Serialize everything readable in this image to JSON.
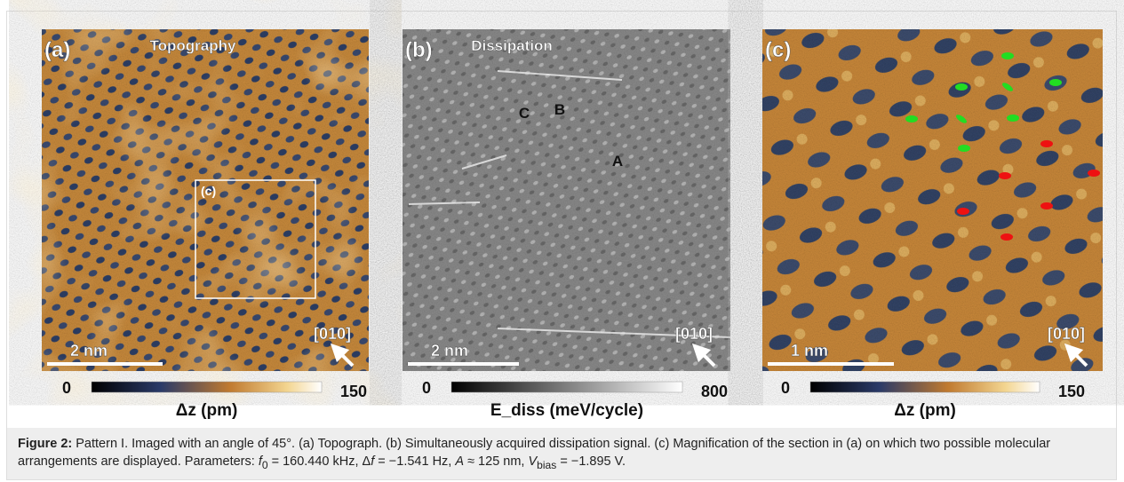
{
  "panels": [
    {
      "label": "(a)",
      "title": "Topography",
      "inset": "(c)",
      "scale_bar": "2 nm",
      "direction": "[010]",
      "colorbar": {
        "min": 0,
        "max": 150,
        "label": "Δz (pm)"
      }
    },
    {
      "label": "(b)",
      "title": "Dissipation",
      "annotations": [
        "C",
        "B",
        "A"
      ],
      "scale_bar": "2 nm",
      "direction": "[010]",
      "colorbar": {
        "min": 0,
        "max": 800,
        "label": "E_diss (meV/cycle)"
      }
    },
    {
      "label": "(c)",
      "scale_bar": "1 nm",
      "direction": "[010]",
      "colorbar": {
        "min": 0,
        "max": 150,
        "label": "Δz (pm)"
      }
    }
  ],
  "caption": {
    "label": "Figure 2:",
    "parts": [
      "Pattern I. Imaged with an angle of 45°. (a) Topograph. (b) Simultaneously acquired dissipation signal. (c) Magnification of the section in (a) on which two possible molecular arrangements are displayed. Parameters: ",
      "f",
      "0",
      " = 160.440 kHz, Δ",
      "f",
      " = −1.541 Hz, ",
      "A",
      " ≈ 125 nm, ",
      "V",
      "bias",
      " = −1.895 V."
    ]
  }
}
